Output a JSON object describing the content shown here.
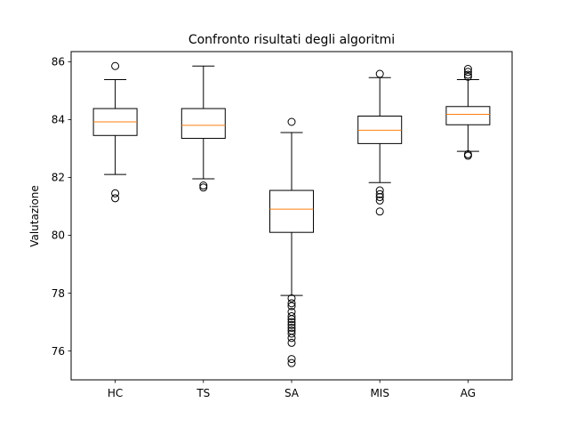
{
  "chart_data": {
    "type": "box",
    "title": "Confronto risultati degli algoritmi",
    "xlabel": "",
    "ylabel": "Valutazione",
    "ylim": [
      75.0,
      86.35
    ],
    "yticks": [
      76,
      78,
      80,
      82,
      84,
      86
    ],
    "grid": false,
    "categories": [
      "HC",
      "TS",
      "SA",
      "MIS",
      "AG"
    ],
    "boxes": [
      {
        "category": "HC",
        "whisker_low": 82.1,
        "q1": 83.45,
        "median": 83.92,
        "q3": 84.38,
        "whisker_high": 85.38,
        "outliers": [
          85.85,
          81.45,
          81.28
        ]
      },
      {
        "category": "TS",
        "whisker_low": 81.95,
        "q1": 83.35,
        "median": 83.8,
        "q3": 84.38,
        "whisker_high": 85.85,
        "outliers": [
          81.72,
          81.65
        ]
      },
      {
        "category": "SA",
        "whisker_low": 77.92,
        "q1": 80.1,
        "median": 80.9,
        "q3": 81.55,
        "whisker_high": 83.55,
        "outliers": [
          83.92,
          77.82,
          77.65,
          77.55,
          77.35,
          77.2,
          77.1,
          77.0,
          76.9,
          76.8,
          76.7,
          76.6,
          76.45,
          76.28,
          75.72,
          75.58
        ]
      },
      {
        "category": "MIS",
        "whisker_low": 81.82,
        "q1": 83.17,
        "median": 83.63,
        "q3": 84.12,
        "whisker_high": 85.45,
        "outliers": [
          85.58,
          81.55,
          81.42,
          81.32,
          81.2,
          80.82
        ]
      },
      {
        "category": "AG",
        "whisker_low": 82.9,
        "q1": 83.82,
        "median": 84.18,
        "q3": 84.45,
        "whisker_high": 85.38,
        "outliers": [
          85.75,
          85.65,
          85.55,
          85.48,
          82.8,
          82.75
        ]
      }
    ],
    "colors": {
      "box": "#000000",
      "median": "#ff7f0e",
      "frame": "#000000"
    }
  }
}
